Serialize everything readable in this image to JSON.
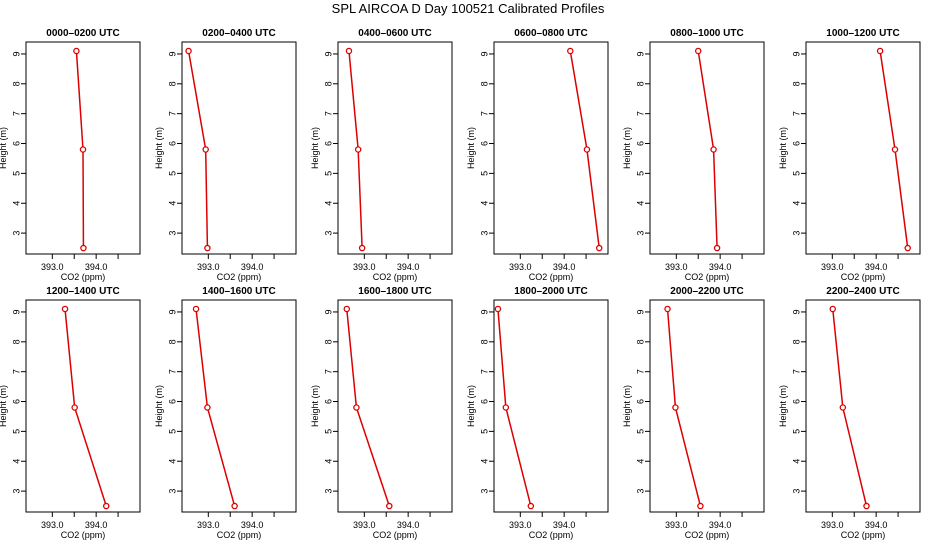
{
  "page_title": "SPL AIRCOA D  Day 100521  Calibrated Profiles",
  "colors": {
    "series": "#dd0000",
    "axes": "#000000",
    "background": "#ffffff"
  },
  "chart_data": [
    {
      "type": "line",
      "title": "0000–0200 UTC",
      "xlabel": "CO2 (ppm)",
      "ylabel": "Height (m)",
      "xlim": [
        392.4,
        395.0
      ],
      "ylim": [
        2.3,
        9.4
      ],
      "xticks": [
        "393.0",
        "394.0"
      ],
      "yticks": [
        "3",
        "4",
        "5",
        "6",
        "7",
        "8",
        "9"
      ],
      "grid": false,
      "series": [
        {
          "x": [
            393.55,
            393.7,
            393.71
          ],
          "y": [
            9.1,
            5.8,
            2.5
          ]
        }
      ]
    },
    {
      "type": "line",
      "title": "0200–0400 UTC",
      "xlabel": "CO2 (ppm)",
      "ylabel": "Height (m)",
      "xlim": [
        392.4,
        395.0
      ],
      "ylim": [
        2.3,
        9.4
      ],
      "xticks": [
        "393.0",
        "394.0"
      ],
      "yticks": [
        "3",
        "4",
        "5",
        "6",
        "7",
        "8",
        "9"
      ],
      "grid": false,
      "series": [
        {
          "x": [
            392.55,
            392.94,
            392.98
          ],
          "y": [
            9.1,
            5.8,
            2.5
          ]
        }
      ]
    },
    {
      "type": "line",
      "title": "0400–0600 UTC",
      "xlabel": "CO2 (ppm)",
      "ylabel": "Height (m)",
      "xlim": [
        392.4,
        395.0
      ],
      "ylim": [
        2.3,
        9.4
      ],
      "xticks": [
        "393.0",
        "394.0"
      ],
      "yticks": [
        "3",
        "4",
        "5",
        "6",
        "7",
        "8",
        "9"
      ],
      "grid": false,
      "series": [
        {
          "x": [
            392.65,
            392.86,
            392.95
          ],
          "y": [
            9.1,
            5.8,
            2.5
          ]
        }
      ]
    },
    {
      "type": "line",
      "title": "0600–0800 UTC",
      "xlabel": "CO2 (ppm)",
      "ylabel": "Height (m)",
      "xlim": [
        392.4,
        395.0
      ],
      "ylim": [
        2.3,
        9.4
      ],
      "xticks": [
        "393.0",
        "394.0"
      ],
      "yticks": [
        "3",
        "4",
        "5",
        "6",
        "7",
        "8",
        "9"
      ],
      "grid": false,
      "series": [
        {
          "x": [
            394.14,
            394.52,
            394.8
          ],
          "y": [
            9.1,
            5.8,
            2.5
          ]
        }
      ]
    },
    {
      "type": "line",
      "title": "0800–1000 UTC",
      "xlabel": "CO2 (ppm)",
      "ylabel": "Height (m)",
      "xlim": [
        392.4,
        395.0
      ],
      "ylim": [
        2.3,
        9.4
      ],
      "xticks": [
        "393.0",
        "394.0"
      ],
      "yticks": [
        "3",
        "4",
        "5",
        "6",
        "7",
        "8",
        "9"
      ],
      "grid": false,
      "series": [
        {
          "x": [
            393.5,
            393.85,
            393.93
          ],
          "y": [
            9.1,
            5.8,
            2.5
          ]
        }
      ]
    },
    {
      "type": "line",
      "title": "1000–1200 UTC",
      "xlabel": "CO2 (ppm)",
      "ylabel": "Height (m)",
      "xlim": [
        392.4,
        395.0
      ],
      "ylim": [
        2.3,
        9.4
      ],
      "xticks": [
        "393.0",
        "394.0"
      ],
      "yticks": [
        "3",
        "4",
        "5",
        "6",
        "7",
        "8",
        "9"
      ],
      "grid": false,
      "series": [
        {
          "x": [
            394.09,
            394.43,
            394.72
          ],
          "y": [
            9.1,
            5.8,
            2.5
          ]
        }
      ]
    },
    {
      "type": "line",
      "title": "1200–1400 UTC",
      "xlabel": "CO2 (ppm)",
      "ylabel": "Height (m)",
      "xlim": [
        392.4,
        395.0
      ],
      "ylim": [
        2.3,
        9.4
      ],
      "xticks": [
        "393.0",
        "394.0"
      ],
      "yticks": [
        "3",
        "4",
        "5",
        "6",
        "7",
        "8",
        "9"
      ],
      "grid": false,
      "series": [
        {
          "x": [
            393.29,
            393.51,
            394.23
          ],
          "y": [
            9.1,
            5.8,
            2.5
          ]
        }
      ]
    },
    {
      "type": "line",
      "title": "1400–1600 UTC",
      "xlabel": "CO2 (ppm)",
      "ylabel": "Height (m)",
      "xlim": [
        392.4,
        395.0
      ],
      "ylim": [
        2.3,
        9.4
      ],
      "xticks": [
        "393.0",
        "394.0"
      ],
      "yticks": [
        "3",
        "4",
        "5",
        "6",
        "7",
        "8",
        "9"
      ],
      "grid": false,
      "series": [
        {
          "x": [
            392.72,
            392.98,
            393.6
          ],
          "y": [
            9.1,
            5.8,
            2.5
          ]
        }
      ]
    },
    {
      "type": "line",
      "title": "1600–1800 UTC",
      "xlabel": "CO2 (ppm)",
      "ylabel": "Height (m)",
      "xlim": [
        392.4,
        395.0
      ],
      "ylim": [
        2.3,
        9.4
      ],
      "xticks": [
        "393.0",
        "394.0"
      ],
      "yticks": [
        "3",
        "4",
        "5",
        "6",
        "7",
        "8",
        "9"
      ],
      "grid": false,
      "series": [
        {
          "x": [
            392.6,
            392.82,
            393.57
          ],
          "y": [
            9.1,
            5.8,
            2.5
          ]
        }
      ]
    },
    {
      "type": "line",
      "title": "1800–2000 UTC",
      "xlabel": "CO2 (ppm)",
      "ylabel": "Height (m)",
      "xlim": [
        392.4,
        395.0
      ],
      "ylim": [
        2.3,
        9.4
      ],
      "xticks": [
        "393.0",
        "394.0"
      ],
      "yticks": [
        "3",
        "4",
        "5",
        "6",
        "7",
        "8",
        "9"
      ],
      "grid": false,
      "series": [
        {
          "x": [
            392.49,
            392.67,
            393.24
          ],
          "y": [
            9.1,
            5.8,
            2.5
          ]
        }
      ]
    },
    {
      "type": "line",
      "title": "2000–2200 UTC",
      "xlabel": "CO2 (ppm)",
      "ylabel": "Height (m)",
      "xlim": [
        392.4,
        395.0
      ],
      "ylim": [
        2.3,
        9.4
      ],
      "xticks": [
        "393.0",
        "394.0"
      ],
      "yticks": [
        "3",
        "4",
        "5",
        "6",
        "7",
        "8",
        "9"
      ],
      "grid": false,
      "series": [
        {
          "x": [
            392.8,
            392.98,
            393.55
          ],
          "y": [
            9.1,
            5.8,
            2.5
          ]
        }
      ]
    },
    {
      "type": "line",
      "title": "2200–2400 UTC",
      "xlabel": "CO2 (ppm)",
      "ylabel": "Height (m)",
      "xlim": [
        392.4,
        395.0
      ],
      "ylim": [
        2.3,
        9.4
      ],
      "xticks": [
        "393.0",
        "394.0"
      ],
      "yticks": [
        "3",
        "4",
        "5",
        "6",
        "7",
        "8",
        "9"
      ],
      "grid": false,
      "series": [
        {
          "x": [
            393.01,
            393.24,
            393.78
          ],
          "y": [
            9.1,
            5.8,
            2.5
          ]
        }
      ]
    }
  ]
}
